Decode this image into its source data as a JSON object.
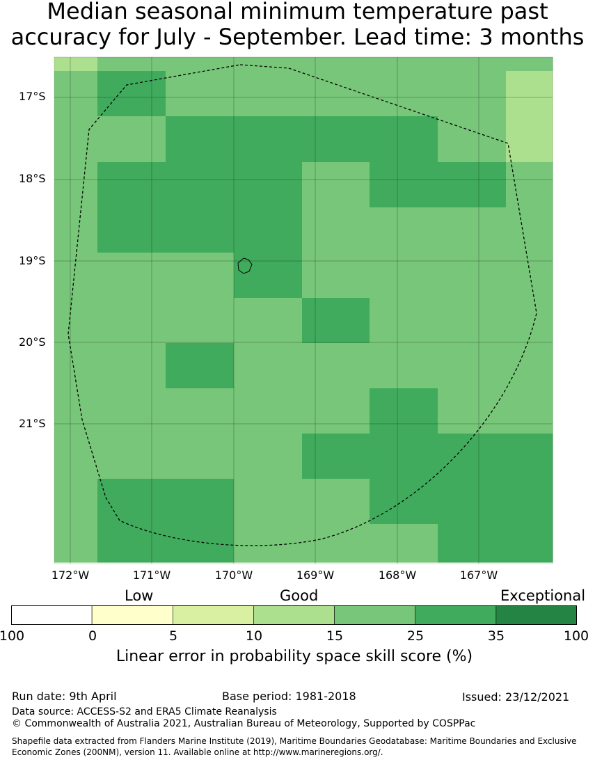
{
  "title": {
    "line1": "Median seasonal minimum temperature past",
    "line2": "accuracy for July - September. Lead time: 3 months"
  },
  "map": {
    "lat_labels": [
      "17°S",
      "18°S",
      "19°S",
      "20°S",
      "21°S"
    ],
    "lon_labels": [
      "172°W",
      "171°W",
      "170°W",
      "169°W",
      "168°W",
      "167°W"
    ],
    "grid_colors": [
      "#ade08e",
      "#78c679",
      "#41ab5d"
    ],
    "cells": [
      [
        0,
        1,
        1,
        1,
        1,
        1,
        1,
        1
      ],
      [
        1,
        2,
        1,
        1,
        1,
        1,
        1,
        0
      ],
      [
        1,
        1,
        2,
        2,
        2,
        2,
        1,
        0
      ],
      [
        1,
        2,
        2,
        2,
        1,
        2,
        2,
        1
      ],
      [
        1,
        2,
        2,
        2,
        1,
        1,
        1,
        1
      ],
      [
        1,
        1,
        1,
        2,
        1,
        1,
        1,
        1
      ],
      [
        1,
        1,
        1,
        1,
        2,
        1,
        1,
        1
      ],
      [
        1,
        1,
        2,
        1,
        1,
        1,
        1,
        1
      ],
      [
        1,
        1,
        1,
        1,
        1,
        2,
        1,
        1
      ],
      [
        1,
        1,
        1,
        1,
        2,
        2,
        2,
        2
      ],
      [
        1,
        2,
        2,
        1,
        1,
        2,
        2,
        2
      ],
      [
        1,
        2,
        2,
        1,
        1,
        1,
        2,
        2
      ]
    ]
  },
  "legend": {
    "categories": [
      "Low",
      "Good",
      "Exceptional"
    ],
    "colors": [
      "#ffffff",
      "#ffffcc",
      "#d9f0a3",
      "#ade08e",
      "#78c679",
      "#41ab5d",
      "#238443"
    ],
    "ticks": [
      "100",
      "0",
      "5",
      "10",
      "15",
      "25",
      "35",
      "100"
    ],
    "label": "Linear error in probability space skill score (%)"
  },
  "footer": {
    "run_date": "Run date: 9th April",
    "base_period": "Base period: 1981-2018",
    "issued": "Issued: 23/12/2021",
    "data_source": "Data source: ACCESS-S2 and ERA5 Climate Reanalysis",
    "copyright": "© Commonwealth of Australia 2021, Australian Bureau of Meteorology, Supported by COSPPac",
    "shapefile_line1": "Shapefile data extracted from Flanders Marine Institute (2019), Maritime Boundaries Geodatabase: Maritime Boundaries and Exclusive",
    "shapefile_line2": "Economic Zones (200NM), version 11. Available online at http://www.marineregions.org/."
  }
}
